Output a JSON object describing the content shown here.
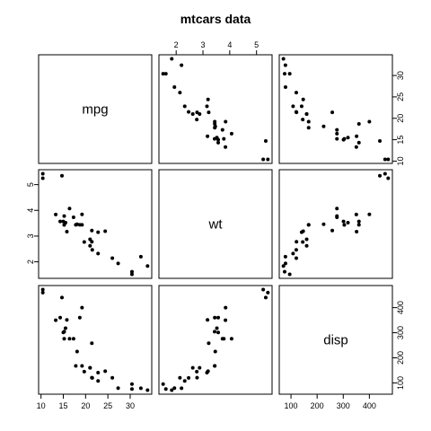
{
  "chart_data": {
    "type": "scatter",
    "title": "mtcars data",
    "variables": [
      {
        "key": "mpg",
        "label": "mpg",
        "range": [
          10.4,
          33.9
        ],
        "ticks": [
          10,
          15,
          20,
          25,
          30
        ]
      },
      {
        "key": "wt",
        "label": "wt",
        "range": [
          1.513,
          5.424
        ],
        "ticks": [
          2,
          3,
          4,
          5
        ]
      },
      {
        "key": "disp",
        "label": "disp",
        "range": [
          71.1,
          472
        ],
        "ticks": [
          100,
          200,
          300,
          400
        ]
      }
    ],
    "tick_axes": {
      "mpg": [
        "bottom",
        "right"
      ],
      "wt": [
        "top",
        "left"
      ],
      "disp": [
        "bottom",
        "right"
      ]
    },
    "observations": [
      {
        "mpg": 21.0,
        "wt": 2.62,
        "disp": 160.0
      },
      {
        "mpg": 21.0,
        "wt": 2.875,
        "disp": 160.0
      },
      {
        "mpg": 22.8,
        "wt": 2.32,
        "disp": 108.0
      },
      {
        "mpg": 21.4,
        "wt": 3.215,
        "disp": 258.0
      },
      {
        "mpg": 18.7,
        "wt": 3.44,
        "disp": 360.0
      },
      {
        "mpg": 18.1,
        "wt": 3.46,
        "disp": 225.0
      },
      {
        "mpg": 14.3,
        "wt": 3.57,
        "disp": 360.0
      },
      {
        "mpg": 24.4,
        "wt": 3.19,
        "disp": 146.7
      },
      {
        "mpg": 22.8,
        "wt": 3.15,
        "disp": 140.8
      },
      {
        "mpg": 19.2,
        "wt": 3.44,
        "disp": 167.6
      },
      {
        "mpg": 17.8,
        "wt": 3.44,
        "disp": 167.6
      },
      {
        "mpg": 16.4,
        "wt": 4.07,
        "disp": 275.8
      },
      {
        "mpg": 17.3,
        "wt": 3.73,
        "disp": 275.8
      },
      {
        "mpg": 15.2,
        "wt": 3.78,
        "disp": 275.8
      },
      {
        "mpg": 10.4,
        "wt": 5.25,
        "disp": 472.0
      },
      {
        "mpg": 10.4,
        "wt": 5.424,
        "disp": 460.0
      },
      {
        "mpg": 14.7,
        "wt": 5.345,
        "disp": 440.0
      },
      {
        "mpg": 32.4,
        "wt": 2.2,
        "disp": 78.7
      },
      {
        "mpg": 30.4,
        "wt": 1.615,
        "disp": 75.7
      },
      {
        "mpg": 33.9,
        "wt": 1.835,
        "disp": 71.1
      },
      {
        "mpg": 21.5,
        "wt": 2.465,
        "disp": 120.1
      },
      {
        "mpg": 15.5,
        "wt": 3.52,
        "disp": 318.0
      },
      {
        "mpg": 15.2,
        "wt": 3.435,
        "disp": 304.0
      },
      {
        "mpg": 13.3,
        "wt": 3.84,
        "disp": 350.0
      },
      {
        "mpg": 19.2,
        "wt": 3.845,
        "disp": 400.0
      },
      {
        "mpg": 27.3,
        "wt": 1.935,
        "disp": 79.0
      },
      {
        "mpg": 26.0,
        "wt": 2.14,
        "disp": 120.3
      },
      {
        "mpg": 30.4,
        "wt": 1.513,
        "disp": 95.1
      },
      {
        "mpg": 15.8,
        "wt": 3.17,
        "disp": 351.0
      },
      {
        "mpg": 19.7,
        "wt": 2.77,
        "disp": 145.0
      },
      {
        "mpg": 15.0,
        "wt": 3.57,
        "disp": 301.0
      },
      {
        "mpg": 21.4,
        "wt": 2.78,
        "disp": 121.0
      }
    ],
    "grid": false,
    "legend": "none"
  }
}
